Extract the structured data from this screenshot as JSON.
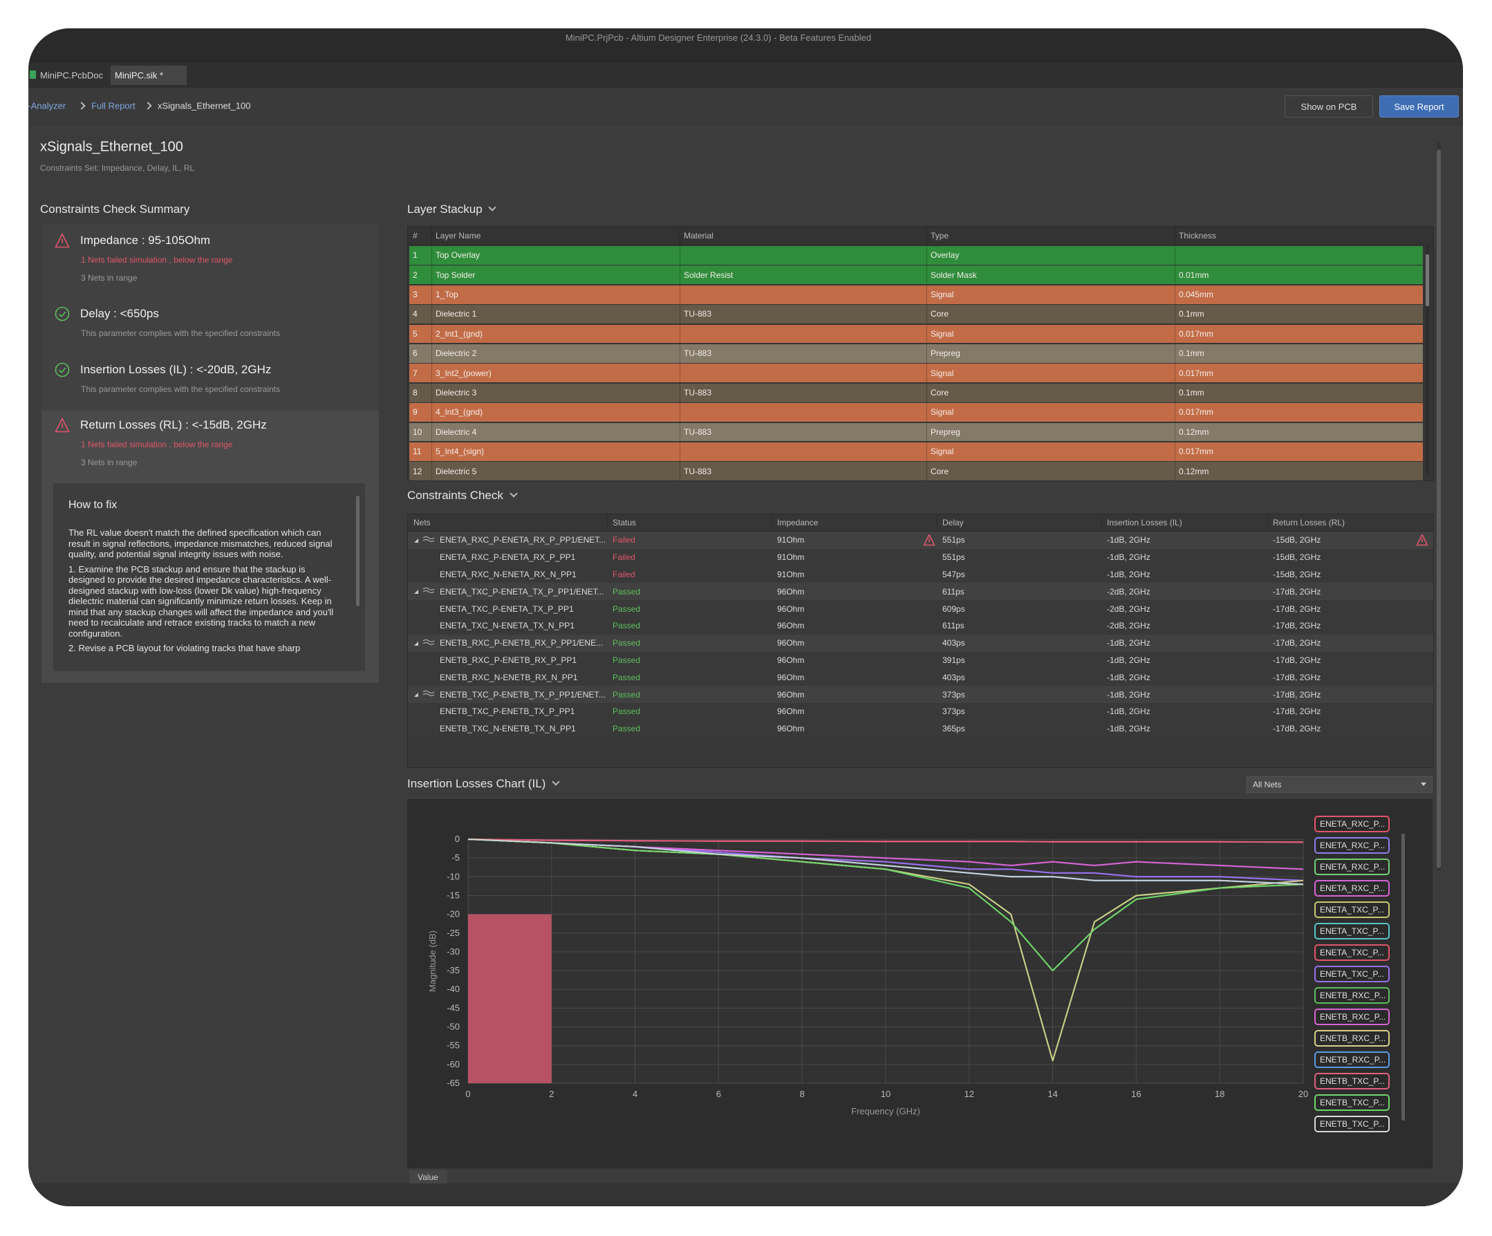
{
  "window": {
    "title": "MiniPC.PrjPcb - Altium Designer Enterprise (24.3.0) - Beta Features Enabled",
    "tabs": [
      "MiniPC.PcbDoc",
      "MiniPC.sik *"
    ]
  },
  "breadcrumb": [
    "SI-Analyzer",
    "Full Report",
    "xSignals_Ethernet_100"
  ],
  "buttons": [
    "Show on PCB",
    "Save Report"
  ],
  "header": {
    "title": "xSignals_Ethernet_100",
    "subtitle": "Constraints Set: Impedance, Delay, IL, RL"
  },
  "summary": {
    "title": "Constraints Check Summary",
    "items": [
      {
        "title": "Impedance  :  95-105Ohm",
        "status": "fail",
        "failed_note": "1  Nets failed simulation , below the range",
        "note": "3  Nets in range"
      },
      {
        "title": "Delay  :  <650ps",
        "status": "pass",
        "note": "This parameter complies with the specified constraints"
      },
      {
        "title": "Insertion Losses (IL)  :  <-20dB, 2GHz",
        "status": "pass",
        "note": "This parameter complies with the specified constraints"
      },
      {
        "title": "Return Losses (RL)  :  <-15dB, 2GHz",
        "status": "fail",
        "failed_note": "1  Nets failed simulation , below the range",
        "note": "3  Nets in range"
      }
    ],
    "how_to_fix": {
      "title": "How to fix",
      "paragraphs": [
        "The RL value doesn't match the defined specification which can result in signal reflections, impedance mismatches, reduced signal quality, and potential signal integrity issues with noise.",
        "1. Examine the PCB stackup and ensure that the stackup is designed to provide the desired impedance characteristics. A well-designed stackup with low-loss (lower Dk value) high-frequency dielectric material can significantly minimize return losses. Keep in mind that any stackup changes will affect the impedance and you'll need to recalculate and retrace existing tracks to match a new configuration.",
        "2. Revise a PCB layout for violating tracks that have sharp"
      ]
    }
  },
  "layer_stackup": {
    "title": "Layer Stackup",
    "columns": [
      "#",
      "Layer Name",
      "Material",
      "Type",
      "Thickness"
    ],
    "rows": [
      [
        1,
        "Top Overlay",
        null,
        "Overlay",
        null
      ],
      [
        2,
        "Top Solder",
        "Solder Resist",
        "Solder Mask",
        "0.01mm"
      ],
      [
        3,
        "1_Top",
        null,
        "Signal",
        "0.045mm"
      ],
      [
        4,
        "Dielectric 1",
        "TU-883",
        "Core",
        "0.1mm"
      ],
      [
        5,
        "2_Int1_(gnd)",
        null,
        "Signal",
        "0.017mm"
      ],
      [
        6,
        "Dielectric 2",
        "TU-883",
        "Prepreg",
        "0.1mm"
      ],
      [
        7,
        "3_Int2_(power)",
        null,
        "Signal",
        "0.017mm"
      ],
      [
        8,
        "Dielectric 3",
        "TU-883",
        "Core",
        "0.1mm"
      ],
      [
        9,
        "4_Int3_(gnd)",
        null,
        "Signal",
        "0.017mm"
      ],
      [
        10,
        "Dielectric 4",
        "TU-883",
        "Prepreg",
        "0.12mm"
      ],
      [
        11,
        "5_Int4_(sign)",
        null,
        "Signal",
        "0.017mm"
      ],
      [
        12,
        "Dielectric 5",
        "TU-883",
        "Core",
        "0.12mm"
      ]
    ],
    "row_colors": [
      "#2f8d3b",
      "#2f8d3b",
      "#c26c47",
      "#665a49",
      "#c26c47",
      "#847a68",
      "#c26c47",
      "#665a49",
      "#c26c47",
      "#847a68",
      "#c26c47",
      "#665a49"
    ]
  },
  "constraints_check": {
    "title": "Constraints Check",
    "columns": [
      "Nets",
      "Status",
      "Impedance",
      "Delay",
      "Insertion Losses (IL)",
      "Return Losses (RL)"
    ],
    "status_colors": {
      "Failed": "#e0566c",
      "Passed": "#5cbf5c"
    },
    "rows": [
      {
        "group": true,
        "flagged": true,
        "cells": [
          "ENETA_RXC_P-ENETA_RX_P_PP1/ENET...",
          "Failed",
          "91Ohm",
          "551ps",
          "-1dB, 2GHz",
          "-15dB, 2GHz"
        ]
      },
      {
        "cells": [
          "ENETA_RXC_P-ENETA_RX_P_PP1",
          "Failed",
          "91Ohm",
          "551ps",
          "-1dB, 2GHz",
          "-15dB, 2GHz"
        ]
      },
      {
        "cells": [
          "ENETA_RXC_N-ENETA_RX_N_PP1",
          "Failed",
          "91Ohm",
          "547ps",
          "-1dB, 2GHz",
          "-15dB, 2GHz"
        ]
      },
      {
        "group": true,
        "cells": [
          "ENETA_TXC_P-ENETA_TX_P_PP1/ENET...",
          "Passed",
          "96Ohm",
          "611ps",
          "-2dB, 2GHz",
          "-17dB, 2GHz"
        ]
      },
      {
        "cells": [
          "ENETA_TXC_P-ENETA_TX_P_PP1",
          "Passed",
          "96Ohm",
          "609ps",
          "-2dB, 2GHz",
          "-17dB, 2GHz"
        ]
      },
      {
        "cells": [
          "ENETA_TXC_N-ENETA_TX_N_PP1",
          "Passed",
          "96Ohm",
          "611ps",
          "-2dB, 2GHz",
          "-17dB, 2GHz"
        ]
      },
      {
        "group": true,
        "cells": [
          "ENETB_RXC_P-ENETB_RX_P_PP1/ENE...",
          "Passed",
          "96Ohm",
          "403ps",
          "-1dB, 2GHz",
          "-17dB, 2GHz"
        ]
      },
      {
        "cells": [
          "ENETB_RXC_P-ENETB_RX_P_PP1",
          "Passed",
          "96Ohm",
          "391ps",
          "-1dB, 2GHz",
          "-17dB, 2GHz"
        ]
      },
      {
        "cells": [
          "ENETB_RXC_N-ENETB_RX_N_PP1",
          "Passed",
          "96Ohm",
          "403ps",
          "-1dB, 2GHz",
          "-17dB, 2GHz"
        ]
      },
      {
        "group": true,
        "cells": [
          "ENETB_TXC_P-ENETB_TX_P_PP1/ENET...",
          "Passed",
          "96Ohm",
          "373ps",
          "-1dB, 2GHz",
          "-17dB, 2GHz"
        ]
      },
      {
        "cells": [
          "ENETB_TXC_P-ENETB_TX_P_PP1",
          "Passed",
          "96Ohm",
          "373ps",
          "-1dB, 2GHz",
          "-17dB, 2GHz"
        ]
      },
      {
        "cells": [
          "ENETB_TXC_N-ENETB_TX_N_PP1",
          "Passed",
          "96Ohm",
          "365ps",
          "-1dB, 2GHz",
          "-17dB, 2GHz"
        ]
      }
    ]
  },
  "chart_data": {
    "type": "line",
    "title": "Insertion Losses Chart (IL)",
    "filter": "All Nets",
    "tab": "Value",
    "xlabel": "Frequency (GHz)",
    "ylabel": "Magnitude (dB)",
    "xlim": [
      0,
      20
    ],
    "ylim": [
      -65,
      0
    ],
    "xticks": [
      0,
      2,
      4,
      6,
      8,
      10,
      12,
      14,
      16,
      18,
      20
    ],
    "yticks": [
      0,
      -5,
      -10,
      -15,
      -20,
      -25,
      -30,
      -35,
      -40,
      -45,
      -50,
      -55,
      -60,
      -65
    ],
    "grid": true,
    "mask": {
      "x0": 0,
      "x1": 2,
      "value": -20,
      "color": "#bf5468"
    },
    "x": [
      0,
      2,
      4,
      6,
      8,
      10,
      12,
      13,
      14,
      15,
      16,
      18,
      20
    ],
    "series": [
      {
        "name": "ENETA_RXC_P...",
        "color": "#e0566c",
        "values": [
          0,
          -0.3,
          -0.4,
          -0.5,
          -0.5,
          -0.6,
          -0.6,
          -0.6,
          -0.7,
          -0.7,
          -0.7,
          -0.7,
          -0.8
        ]
      },
      {
        "name": "ENETA_RXC_P...",
        "color": "#8c7ff0",
        "values": [
          0,
          -1,
          -2,
          -3.5,
          -5,
          -6,
          -8,
          -8,
          -9,
          -9,
          -10,
          -10,
          -11
        ]
      },
      {
        "name": "ENETA_RXC_P...",
        "color": "#74d174",
        "values": [
          0,
          -1,
          -3,
          -4,
          -6,
          -8,
          -12,
          -20,
          -59,
          -22,
          -15,
          -13,
          -11
        ]
      },
      {
        "name": "ENETA_RXC_P...",
        "color": "#d865d8",
        "values": [
          0,
          -1,
          -2,
          -3,
          -4,
          -5,
          -6,
          -7,
          -6,
          -7,
          -6,
          -7,
          -8
        ]
      },
      {
        "name": "ENETA_TXC_P...",
        "color": "#c9c870",
        "values": [
          0,
          -1,
          -3,
          -4,
          -6,
          -8,
          -13,
          -22,
          -35,
          -24,
          -16,
          -13,
          -12
        ]
      },
      {
        "name": "ENETA_TXC_P...",
        "color": "#55c6c6",
        "values": [
          0,
          -1,
          -2,
          -4,
          -5,
          -7,
          -9,
          -10,
          -10,
          -11,
          -11,
          -11,
          -12
        ]
      },
      {
        "name": "ENETA_TXC_P...",
        "color": "#e0566c",
        "values": [
          0,
          -0.3,
          -0.4,
          -0.5,
          -0.5,
          -0.6,
          -0.6,
          -0.6,
          -0.7,
          -0.7,
          -0.7,
          -0.7,
          -0.8
        ]
      },
      {
        "name": "ENETA_TXC_P...",
        "color": "#9b70f0",
        "values": [
          0,
          -1,
          -2,
          -3.5,
          -5,
          -6,
          -8,
          -8,
          -9,
          -9,
          -10,
          -10,
          -11
        ]
      },
      {
        "name": "ENETB_RXC_P...",
        "color": "#5cbf5c",
        "values": [
          0,
          -1,
          -3,
          -4,
          -6,
          -8,
          -13,
          -22,
          -35,
          -24,
          -16,
          -13,
          -12
        ]
      },
      {
        "name": "ENETB_RXC_P...",
        "color": "#d865d8",
        "values": [
          0,
          -1,
          -2,
          -3,
          -4,
          -5,
          -6,
          -7,
          -6,
          -7,
          -6,
          -7,
          -8
        ]
      },
      {
        "name": "ENETB_RXC_P...",
        "color": "#d8d08a",
        "values": [
          0,
          -1,
          -3,
          -4,
          -6,
          -8,
          -12,
          -20,
          -59,
          -22,
          -15,
          -13,
          -11
        ]
      },
      {
        "name": "ENETB_RXC_P...",
        "color": "#5b9be8",
        "values": [
          0,
          -1,
          -2,
          -4,
          -5,
          -7,
          -9,
          -10,
          -10,
          -11,
          -11,
          -11,
          -12
        ]
      },
      {
        "name": "ENETB_TXC_P...",
        "color": "#e06082",
        "values": [
          0,
          -0.3,
          -0.4,
          -0.5,
          -0.5,
          -0.6,
          -0.6,
          -0.6,
          -0.7,
          -0.7,
          -0.7,
          -0.7,
          -0.8
        ]
      },
      {
        "name": "ENETB_TXC_P...",
        "color": "#6cd66c",
        "values": [
          0,
          -1,
          -3,
          -4,
          -6,
          -8,
          -13,
          -22,
          -35,
          -24,
          -16,
          -13,
          -12
        ]
      },
      {
        "name": "ENETB_TXC_P...",
        "color": "#d8d8d8",
        "values": [
          0,
          -1,
          -2,
          -4,
          -5,
          -7,
          -9,
          -10,
          -10,
          -11,
          -11,
          -11,
          -12
        ]
      }
    ]
  }
}
